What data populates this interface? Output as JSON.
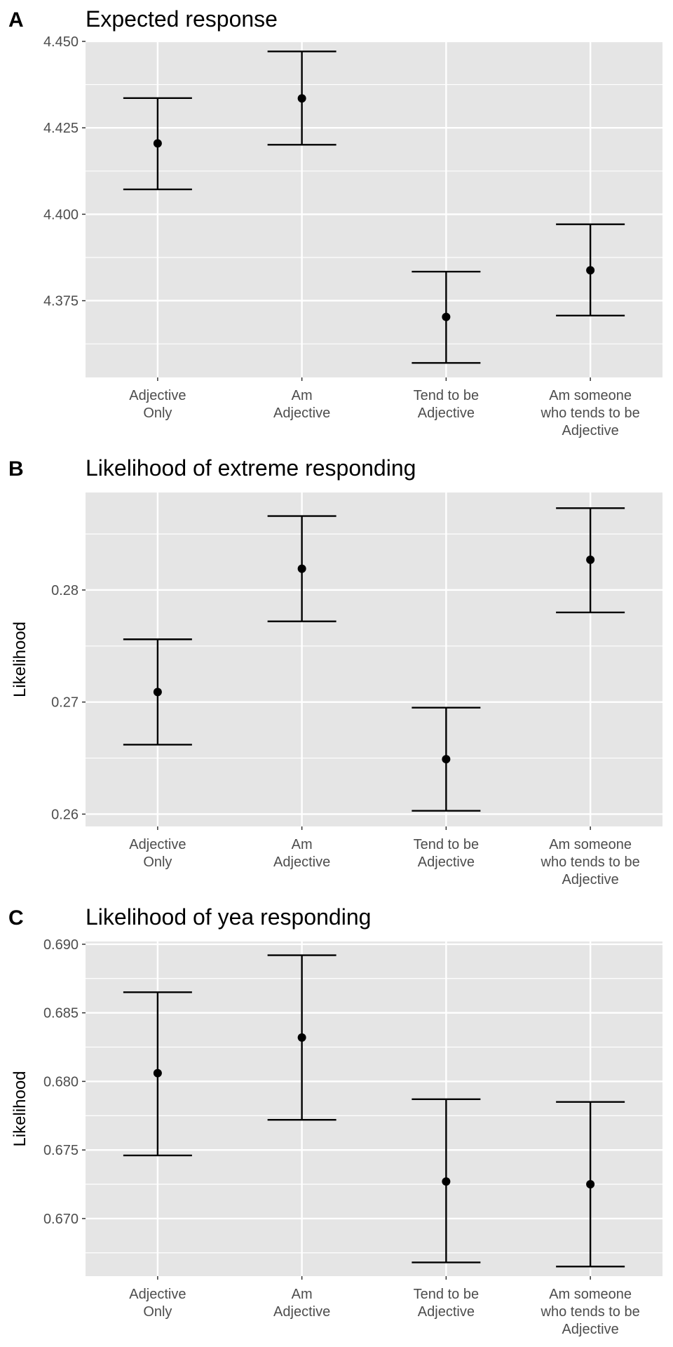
{
  "chart_data": [
    {
      "type": "errorbar",
      "panel_label": "A",
      "title": "Expected response",
      "xlabel": "",
      "ylabel": "",
      "categories": [
        [
          "Adjective",
          "Only"
        ],
        [
          "Am",
          "Adjective"
        ],
        [
          "Tend to be",
          "Adjective"
        ],
        [
          "Am someone",
          "who tends to be",
          "Adjective"
        ]
      ],
      "points": [
        {
          "y": 4.4205,
          "lower": 4.4072,
          "upper": 4.4336
        },
        {
          "y": 4.4335,
          "lower": 4.4201,
          "upper": 4.4471
        },
        {
          "y": 4.3703,
          "lower": 4.357,
          "upper": 4.3834
        },
        {
          "y": 4.3838,
          "lower": 4.3707,
          "upper": 4.3971
        }
      ],
      "ylim": [
        4.3528,
        4.4502
      ],
      "yticks": [
        4.375,
        4.4,
        4.425,
        4.45
      ],
      "ytick_labels": [
        "4.375",
        "4.400",
        "4.425",
        "4.450"
      ],
      "grid": true
    },
    {
      "type": "errorbar",
      "panel_label": "B",
      "title": "Likelihood of extreme responding",
      "xlabel": "",
      "ylabel": "Likelihood",
      "categories": [
        [
          "Adjective",
          "Only"
        ],
        [
          "Am",
          "Adjective"
        ],
        [
          "Tend to be",
          "Adjective"
        ],
        [
          "Am someone",
          "who tends to be",
          "Adjective"
        ]
      ],
      "points": [
        {
          "y": 0.2709,
          "lower": 0.2662,
          "upper": 0.2756
        },
        {
          "y": 0.2819,
          "lower": 0.2772,
          "upper": 0.2866
        },
        {
          "y": 0.2649,
          "lower": 0.2603,
          "upper": 0.2695
        },
        {
          "y": 0.2827,
          "lower": 0.278,
          "upper": 0.2873
        }
      ],
      "ylim": [
        0.2589,
        0.2887
      ],
      "yticks": [
        0.26,
        0.27,
        0.28
      ],
      "ytick_labels": [
        "0.26",
        "0.27",
        "0.28"
      ],
      "grid": true
    },
    {
      "type": "errorbar",
      "panel_label": "C",
      "title": "Likelihood of yea responding",
      "xlabel": "",
      "ylabel": "Likelihood",
      "categories": [
        [
          "Adjective",
          "Only"
        ],
        [
          "Am",
          "Adjective"
        ],
        [
          "Tend to be",
          "Adjective"
        ],
        [
          "Am someone",
          "who tends to be",
          "Adjective"
        ]
      ],
      "points": [
        {
          "y": 0.6806,
          "lower": 0.6746,
          "upper": 0.6865
        },
        {
          "y": 0.6832,
          "lower": 0.6772,
          "upper": 0.6892
        },
        {
          "y": 0.6727,
          "lower": 0.6668,
          "upper": 0.6787
        },
        {
          "y": 0.6725,
          "lower": 0.6665,
          "upper": 0.6785
        }
      ],
      "ylim": [
        0.6658,
        0.6902
      ],
      "yticks": [
        0.67,
        0.675,
        0.68,
        0.685,
        0.69
      ],
      "ytick_labels": [
        "0.670",
        "0.675",
        "0.680",
        "0.685",
        "0.690"
      ],
      "grid": true
    }
  ]
}
